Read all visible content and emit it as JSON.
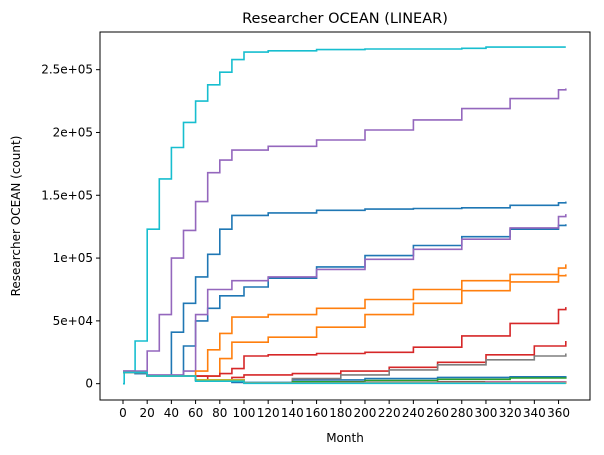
{
  "chart_data": {
    "type": "line",
    "step": true,
    "title": "Researcher OCEAN (LINEAR)",
    "xlabel": "Month",
    "ylabel": "Researcher OCEAN (count)",
    "xlim": [
      -19,
      386
    ],
    "ylim": [
      -13000,
      280000
    ],
    "xticks": [
      0,
      20,
      40,
      60,
      80,
      100,
      120,
      140,
      160,
      180,
      200,
      220,
      240,
      260,
      280,
      300,
      320,
      340,
      360
    ],
    "xtick_labels": [
      "0",
      "20",
      "40",
      "60",
      "80",
      "100",
      "120",
      "140",
      "160",
      "180",
      "200",
      "220",
      "240",
      "260",
      "280",
      "300",
      "320",
      "340",
      "360"
    ],
    "yticks": [
      0,
      50000,
      100000,
      150000,
      200000,
      250000
    ],
    "ytick_labels": [
      "0",
      "5e+04",
      "1e+05",
      "1.5e+05",
      "2e+05",
      "2.5e+05"
    ],
    "grid": false,
    "legend": "none",
    "series": [
      {
        "color": "#17becf",
        "points": [
          [
            0,
            0
          ],
          [
            1,
            9000
          ],
          [
            10,
            34000
          ],
          [
            20,
            123000
          ],
          [
            30,
            163000
          ],
          [
            40,
            188000
          ],
          [
            50,
            208000
          ],
          [
            60,
            225000
          ],
          [
            70,
            238000
          ],
          [
            80,
            248000
          ],
          [
            90,
            258000
          ],
          [
            100,
            264000
          ],
          [
            120,
            265000
          ],
          [
            160,
            266000
          ],
          [
            200,
            266500
          ],
          [
            280,
            267000
          ],
          [
            300,
            268000
          ],
          [
            366,
            268000
          ]
        ]
      },
      {
        "color": "#9467bd",
        "points": [
          [
            0,
            10000
          ],
          [
            10,
            8000
          ],
          [
            20,
            26000
          ],
          [
            30,
            55000
          ],
          [
            40,
            100000
          ],
          [
            50,
            122000
          ],
          [
            60,
            145000
          ],
          [
            70,
            168000
          ],
          [
            80,
            178000
          ],
          [
            90,
            186000
          ],
          [
            120,
            189000
          ],
          [
            160,
            194000
          ],
          [
            200,
            202000
          ],
          [
            240,
            210000
          ],
          [
            280,
            219000
          ],
          [
            320,
            227000
          ],
          [
            360,
            234000
          ],
          [
            366,
            235000
          ]
        ]
      },
      {
        "color": "#1f77b4",
        "points": [
          [
            0,
            9000
          ],
          [
            10,
            8000
          ],
          [
            20,
            6000
          ],
          [
            40,
            41000
          ],
          [
            50,
            64000
          ],
          [
            60,
            85000
          ],
          [
            70,
            103000
          ],
          [
            80,
            123000
          ],
          [
            90,
            134000
          ],
          [
            120,
            136000
          ],
          [
            160,
            138000
          ],
          [
            200,
            139000
          ],
          [
            240,
            139500
          ],
          [
            280,
            140000
          ],
          [
            320,
            142000
          ],
          [
            360,
            144000
          ],
          [
            366,
            145000
          ]
        ]
      },
      {
        "color": "#1f77b4",
        "points": [
          [
            0,
            9000
          ],
          [
            20,
            6000
          ],
          [
            50,
            30000
          ],
          [
            60,
            50000
          ],
          [
            70,
            60000
          ],
          [
            80,
            70000
          ],
          [
            100,
            77000
          ],
          [
            120,
            84000
          ],
          [
            160,
            93000
          ],
          [
            200,
            102000
          ],
          [
            240,
            110000
          ],
          [
            280,
            117000
          ],
          [
            320,
            123000
          ],
          [
            360,
            126000
          ],
          [
            366,
            127000
          ]
        ]
      },
      {
        "color": "#1f77b4",
        "points": [
          [
            0,
            9000
          ],
          [
            20,
            6000
          ],
          [
            60,
            3000
          ],
          [
            90,
            1000
          ],
          [
            140,
            3000
          ],
          [
            200,
            4000
          ],
          [
            260,
            5000
          ],
          [
            320,
            5500
          ],
          [
            366,
            6000
          ]
        ]
      },
      {
        "color": "#9467bd",
        "points": [
          [
            0,
            10000
          ],
          [
            20,
            7000
          ],
          [
            50,
            10000
          ],
          [
            60,
            55000
          ],
          [
            70,
            75000
          ],
          [
            90,
            82000
          ],
          [
            120,
            85000
          ],
          [
            160,
            91000
          ],
          [
            200,
            99000
          ],
          [
            240,
            107000
          ],
          [
            280,
            115000
          ],
          [
            320,
            124000
          ],
          [
            360,
            133000
          ],
          [
            366,
            135000
          ]
        ]
      },
      {
        "color": "#ff7f0e",
        "points": [
          [
            0,
            9000
          ],
          [
            20,
            6000
          ],
          [
            60,
            10000
          ],
          [
            70,
            27000
          ],
          [
            80,
            40000
          ],
          [
            90,
            53000
          ],
          [
            120,
            55000
          ],
          [
            160,
            60000
          ],
          [
            200,
            67000
          ],
          [
            240,
            75000
          ],
          [
            280,
            82000
          ],
          [
            320,
            87000
          ],
          [
            360,
            92000
          ],
          [
            366,
            95000
          ]
        ]
      },
      {
        "color": "#ff7f0e",
        "points": [
          [
            0,
            9000
          ],
          [
            20,
            6000
          ],
          [
            80,
            20000
          ],
          [
            90,
            33000
          ],
          [
            120,
            37000
          ],
          [
            160,
            45000
          ],
          [
            200,
            55000
          ],
          [
            240,
            64000
          ],
          [
            280,
            74000
          ],
          [
            320,
            81000
          ],
          [
            360,
            86000
          ],
          [
            366,
            87000
          ]
        ]
      },
      {
        "color": "#d62728",
        "points": [
          [
            0,
            9000
          ],
          [
            20,
            6000
          ],
          [
            80,
            8000
          ],
          [
            90,
            12000
          ],
          [
            100,
            22000
          ],
          [
            120,
            23000
          ],
          [
            160,
            24000
          ],
          [
            200,
            25000
          ],
          [
            240,
            29000
          ],
          [
            280,
            38000
          ],
          [
            320,
            48000
          ],
          [
            360,
            59000
          ],
          [
            366,
            61000
          ]
        ]
      },
      {
        "color": "#d62728",
        "points": [
          [
            0,
            9000
          ],
          [
            20,
            6000
          ],
          [
            70,
            3000
          ],
          [
            90,
            5000
          ],
          [
            100,
            7000
          ],
          [
            140,
            8000
          ],
          [
            180,
            10000
          ],
          [
            220,
            13000
          ],
          [
            260,
            17000
          ],
          [
            300,
            23000
          ],
          [
            340,
            30000
          ],
          [
            366,
            34000
          ]
        ]
      },
      {
        "color": "#7f7f7f",
        "points": [
          [
            0,
            9000
          ],
          [
            20,
            6000
          ],
          [
            60,
            3000
          ],
          [
            100,
            500
          ],
          [
            140,
            4000
          ],
          [
            180,
            7000
          ],
          [
            220,
            11000
          ],
          [
            260,
            15000
          ],
          [
            300,
            19000
          ],
          [
            340,
            22000
          ],
          [
            366,
            24000
          ]
        ]
      },
      {
        "color": "#2ca02c",
        "points": [
          [
            0,
            9000
          ],
          [
            20,
            6000
          ],
          [
            60,
            3000
          ],
          [
            100,
            500
          ],
          [
            140,
            1500
          ],
          [
            200,
            2500
          ],
          [
            260,
            3500
          ],
          [
            320,
            4500
          ],
          [
            366,
            5000
          ]
        ]
      },
      {
        "color": "#8c564b",
        "points": [
          [
            0,
            9000
          ],
          [
            20,
            6000
          ],
          [
            60,
            3000
          ],
          [
            100,
            500
          ],
          [
            180,
            1000
          ],
          [
            260,
            1500
          ],
          [
            366,
            2000
          ]
        ]
      },
      {
        "color": "#e377c2",
        "points": [
          [
            0,
            9000
          ],
          [
            20,
            6000
          ],
          [
            60,
            3000
          ],
          [
            100,
            500
          ],
          [
            200,
            800
          ],
          [
            300,
            1200
          ],
          [
            366,
            1500
          ]
        ]
      },
      {
        "color": "#bcbd22",
        "points": [
          [
            0,
            9000
          ],
          [
            20,
            6000
          ],
          [
            60,
            3000
          ],
          [
            100,
            500
          ],
          [
            366,
            800
          ]
        ]
      },
      {
        "color": "#17becf",
        "points": [
          [
            0,
            9000
          ],
          [
            20,
            6000
          ],
          [
            60,
            2000
          ],
          [
            100,
            300
          ],
          [
            366,
            300
          ]
        ]
      }
    ]
  }
}
